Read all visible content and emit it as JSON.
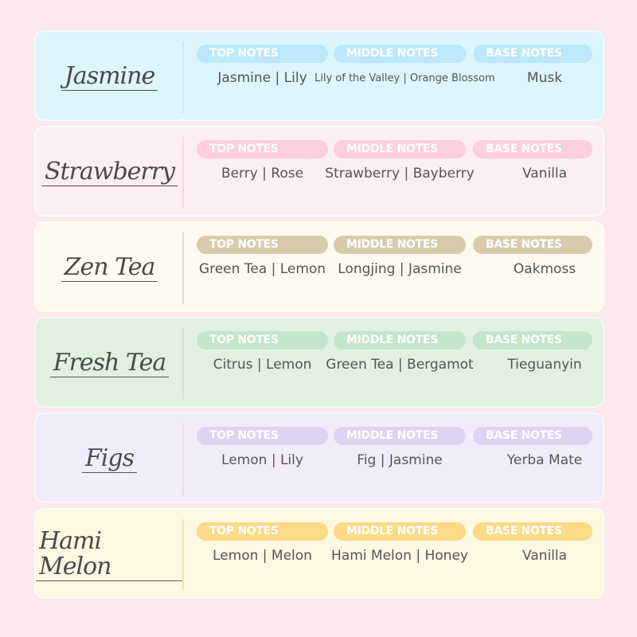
{
  "labels": {
    "top": "TOP NOTES",
    "middle": "MIDDLE NOTES",
    "base": "BASE NOTES"
  },
  "fragrances": [
    {
      "name": "Jasmine",
      "top": "Jasmine | Lily",
      "middle": "Lily of the Valley | Orange Blossom",
      "base": "Musk",
      "bg": "#ddf5fd",
      "pill": "#bde7fa",
      "divider": "#c6e9f6"
    },
    {
      "name": "Strawberry",
      "top": "Berry | Rose",
      "middle": "Strawberry | Bayberry",
      "base": "Vanilla",
      "bg": "#fdeef3",
      "pill": "#fbcfdb",
      "divider": "#f7d8e1"
    },
    {
      "name": "Zen Tea",
      "top": "Green Tea | Lemon",
      "middle": "Longjing | Jasmine",
      "base": "Oakmoss",
      "bg": "#fdfaef",
      "pill": "#d8cbac",
      "divider": "#e6dcc5"
    },
    {
      "name": "Fresh Tea",
      "top": "Citrus | Lemon",
      "middle": "Green Tea | Bergamot",
      "base": "Tieguanyin",
      "bg": "#e0f1e2",
      "pill": "#c3e5ca",
      "divider": "#cde7d2"
    },
    {
      "name": "Figs",
      "top": "Lemon | Lily",
      "middle": "Fig | Jasmine",
      "base": "Yerba Mate",
      "bg": "#f1ecfb",
      "pill": "#ddd3f2",
      "divider": "#e2daf3"
    },
    {
      "name": "Hami Melon",
      "top": "Lemon | Melon",
      "middle": "Hami Melon | Honey",
      "base": "Vanilla",
      "bg": "#fef7e2",
      "pill": "#fbda88",
      "divider": "#f7e2a8"
    }
  ]
}
